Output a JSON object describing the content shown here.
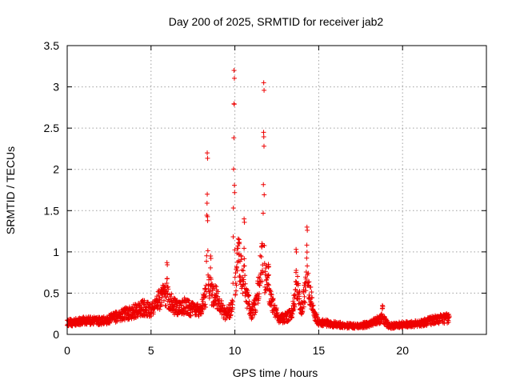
{
  "chart_data": {
    "type": "scatter",
    "title": "Day 200 of 2025, SRMTID for receiver jab2",
    "xlabel": "GPS time / hours",
    "ylabel": "SRMTID / TECUs",
    "xlim": [
      0,
      25
    ],
    "ylim": [
      0,
      3.5
    ],
    "x_ticks": [
      0,
      5,
      10,
      15,
      20
    ],
    "x_tick_labels": [
      "0",
      "5",
      "10",
      "15",
      "20"
    ],
    "y_ticks": [
      0,
      0.5,
      1,
      1.5,
      2,
      2.5,
      3,
      3.5
    ],
    "y_tick_labels": [
      "0",
      "0.5",
      "1",
      "1.5",
      "2",
      "2.5",
      "3",
      "3.5"
    ],
    "grid": true,
    "marker": "+",
    "marker_color": "#ee0000",
    "series": [
      {
        "name": "jab2",
        "profile": [
          [
            0,
            0.14
          ],
          [
            0.5,
            0.15
          ],
          [
            1,
            0.17
          ],
          [
            1.5,
            0.17
          ],
          [
            2,
            0.16
          ],
          [
            2.5,
            0.18
          ],
          [
            3,
            0.22
          ],
          [
            3.5,
            0.25
          ],
          [
            4,
            0.28
          ],
          [
            4.5,
            0.32
          ],
          [
            5,
            0.3
          ],
          [
            5.5,
            0.42
          ],
          [
            5.9,
            0.5
          ],
          [
            6.3,
            0.35
          ],
          [
            6.7,
            0.3
          ],
          [
            7,
            0.35
          ],
          [
            7.5,
            0.3
          ],
          [
            8,
            0.32
          ],
          [
            8.4,
            0.55
          ],
          [
            8.9,
            0.45
          ],
          [
            9.4,
            0.25
          ],
          [
            9.8,
            0.3
          ],
          [
            10.2,
            0.9
          ],
          [
            10.6,
            0.55
          ],
          [
            11,
            0.25
          ],
          [
            11.3,
            0.4
          ],
          [
            11.6,
            0.9
          ],
          [
            11.9,
            0.6
          ],
          [
            12.2,
            0.4
          ],
          [
            12.6,
            0.2
          ],
          [
            13,
            0.2
          ],
          [
            13.4,
            0.25
          ],
          [
            13.7,
            0.6
          ],
          [
            14,
            0.3
          ],
          [
            14.3,
            0.7
          ],
          [
            14.7,
            0.25
          ],
          [
            15,
            0.15
          ],
          [
            16,
            0.12
          ],
          [
            17,
            0.1
          ],
          [
            18,
            0.12
          ],
          [
            18.8,
            0.2
          ],
          [
            19.2,
            0.1
          ],
          [
            20,
            0.12
          ],
          [
            21,
            0.13
          ],
          [
            22,
            0.18
          ],
          [
            22.8,
            0.2
          ]
        ],
        "spikes": [
          {
            "t": 5.95,
            "peak": 0.87,
            "width": 0.1
          },
          {
            "t": 8.35,
            "peak": 2.2,
            "width": 0.08
          },
          {
            "t": 8.55,
            "peak": 0.95,
            "width": 0.06
          },
          {
            "t": 9.95,
            "peak": 3.2,
            "width": 0.08
          },
          {
            "t": 10.25,
            "peak": 1.15,
            "width": 0.1
          },
          {
            "t": 10.55,
            "peak": 1.4,
            "width": 0.06
          },
          {
            "t": 11.72,
            "peak": 3.05,
            "width": 0.07
          },
          {
            "t": 12.0,
            "peak": 0.85,
            "width": 0.1
          },
          {
            "t": 13.65,
            "peak": 1.03,
            "width": 0.08
          },
          {
            "t": 14.3,
            "peak": 1.3,
            "width": 0.08
          },
          {
            "t": 18.8,
            "peak": 0.35,
            "width": 0.1
          }
        ],
        "sample_step_hours": 0.012,
        "x_range": [
          0,
          22.8
        ]
      }
    ]
  }
}
